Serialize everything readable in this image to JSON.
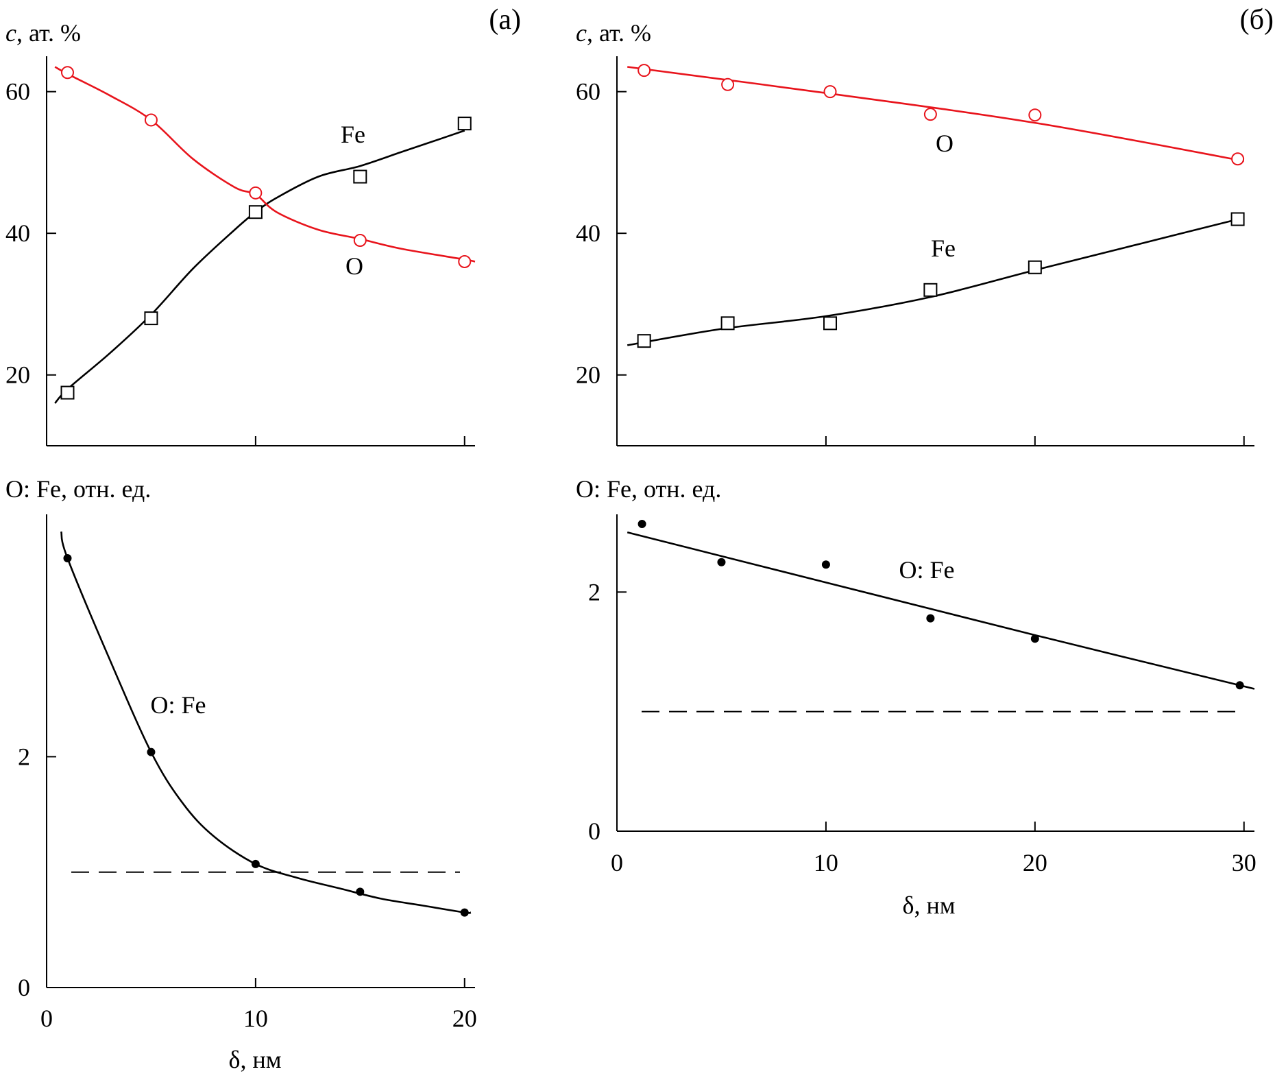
{
  "panels": {
    "a": {
      "label": "(a)"
    },
    "b": {
      "label": "(б)"
    }
  },
  "chart_data": [
    {
      "panel": "(a)",
      "type": "scatter",
      "ylabel": "c, ат. %",
      "ylabel_var": "c",
      "ylabel_rest": ", ат. %",
      "xlim": [
        0,
        20.5
      ],
      "ylim": [
        10,
        65
      ],
      "xticks": [
        0,
        10,
        20
      ],
      "yticks": [
        20,
        40,
        60
      ],
      "ytick_labels": [
        "20",
        "40",
        "60"
      ],
      "series": [
        {
          "name": "Fe",
          "marker": "square",
          "color": "#000000",
          "x": [
            1,
            5,
            10,
            15,
            20
          ],
          "y": [
            17.5,
            28,
            43,
            48,
            55.5
          ],
          "curve_x": [
            0.4,
            1,
            3,
            5,
            7,
            9,
            10,
            11,
            13,
            15,
            17,
            19,
            20
          ],
          "curve_y": [
            16,
            18,
            23,
            28.5,
            35,
            40.5,
            43,
            45,
            48,
            49.5,
            51.5,
            53.5,
            54.5
          ]
        },
        {
          "name": "O",
          "marker": "circle",
          "color": "#e8141c",
          "x": [
            1,
            5,
            10,
            15,
            20
          ],
          "y": [
            62.7,
            56,
            45.7,
            39,
            36
          ],
          "curve_x": [
            0.4,
            1,
            3,
            5,
            7,
            9,
            10,
            11,
            13,
            15,
            17,
            20,
            20.5
          ],
          "curve_y": [
            63.5,
            62.5,
            59.5,
            56,
            50.5,
            46.5,
            45.5,
            43,
            40.5,
            39.2,
            37.8,
            36.3,
            36
          ]
        }
      ]
    },
    {
      "panel": "(б)",
      "type": "scatter",
      "ylabel": "c, ат. %",
      "ylabel_var": "c",
      "ylabel_rest": ", ат. %",
      "xlim": [
        0,
        30.5
      ],
      "ylim": [
        10,
        65
      ],
      "xticks": [
        0,
        10,
        20,
        30
      ],
      "yticks": [
        20,
        40,
        60
      ],
      "ytick_labels": [
        "20",
        "40",
        "60"
      ],
      "series": [
        {
          "name": "O",
          "marker": "circle",
          "color": "#e8141c",
          "x": [
            1.3,
            5.3,
            10.2,
            15,
            20,
            29.7
          ],
          "y": [
            63,
            61,
            60,
            56.8,
            56.7,
            50.5
          ],
          "curve_x": [
            0.5,
            10,
            20,
            30
          ],
          "curve_y": [
            63.5,
            59.8,
            55.6,
            50.2
          ]
        },
        {
          "name": "Fe",
          "marker": "square",
          "color": "#000000",
          "x": [
            1.3,
            5.3,
            10.2,
            15,
            20,
            29.7
          ],
          "y": [
            24.8,
            27.3,
            27.3,
            32,
            35.2,
            42
          ],
          "curve_x": [
            0.5,
            5,
            10,
            15,
            20,
            25,
            30
          ],
          "curve_y": [
            24.2,
            26.5,
            28.3,
            31,
            34.8,
            38.5,
            42.2
          ]
        }
      ]
    },
    {
      "panel": "(a)",
      "type": "scatter",
      "ylabel": "O: Fe, отн. ед.",
      "xlabel": "δ, нм",
      "xlim": [
        0,
        20.5
      ],
      "ylim": [
        0,
        4.1
      ],
      "xticks": [
        0,
        10,
        20
      ],
      "yticks": [
        0,
        2
      ],
      "ytick_labels": [
        "0",
        "2"
      ],
      "series": [
        {
          "name": "O: Fe",
          "marker": "dot",
          "color": "#000000",
          "x": [
            1,
            5,
            10,
            15,
            20
          ],
          "y": [
            3.72,
            2.04,
            1.07,
            0.83,
            0.65
          ],
          "curve_x": [
            0.7,
            1,
            3,
            5,
            6.5,
            8,
            10,
            12,
            14,
            16,
            18,
            20,
            20.3
          ],
          "curve_y": [
            3.95,
            3.72,
            2.85,
            2.04,
            1.6,
            1.31,
            1.07,
            0.95,
            0.86,
            0.77,
            0.71,
            0.65,
            0.65
          ]
        }
      ],
      "reference_line": 1.0
    },
    {
      "panel": "(б)",
      "type": "scatter",
      "ylabel": "O: Fe, отн. ед.",
      "xlabel": "δ, нм",
      "xlim": [
        0,
        30.5
      ],
      "ylim": [
        0,
        2.65
      ],
      "xticks": [
        0,
        10,
        20,
        30
      ],
      "yticks": [
        0,
        2
      ],
      "ytick_labels": [
        "0",
        "2"
      ],
      "series": [
        {
          "name": "O: Fe",
          "marker": "dot",
          "color": "#000000",
          "x": [
            1.2,
            5,
            10,
            15,
            20,
            29.8
          ],
          "y": [
            2.57,
            2.25,
            2.23,
            1.78,
            1.61,
            1.22
          ],
          "curve_x": [
            0.5,
            10,
            20,
            30.5
          ],
          "curve_y": [
            2.5,
            2.08,
            1.64,
            1.19
          ]
        }
      ],
      "reference_line": 1.0
    }
  ]
}
